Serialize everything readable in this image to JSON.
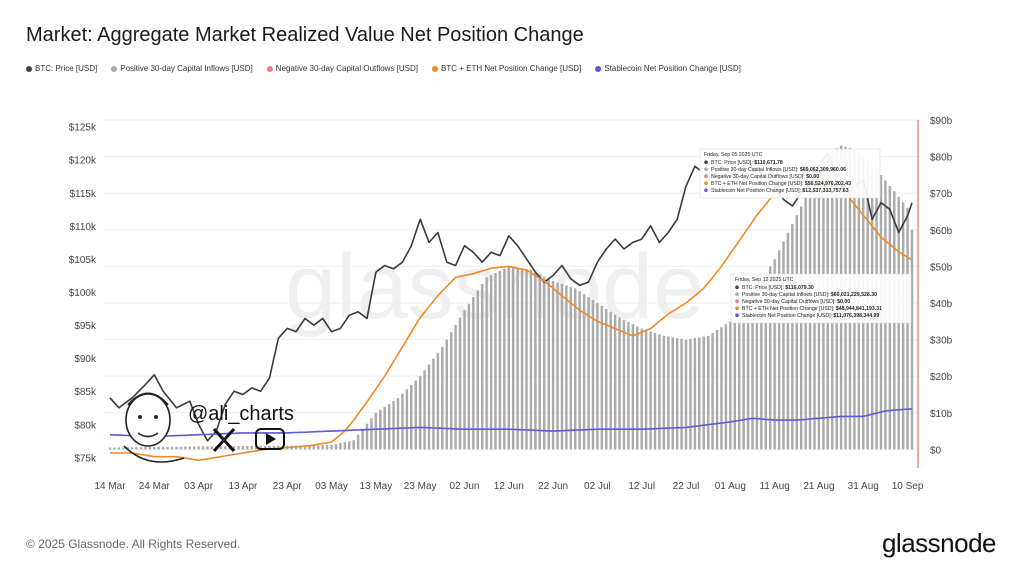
{
  "title": "Market: Aggregate Market Realized Value Net Position Change",
  "legend": [
    {
      "label": "BTC: Price [USD]",
      "color": "#444444"
    },
    {
      "label": "Positive 30-day Capital Inflows [USD]",
      "color": "#aaaaaa"
    },
    {
      "label": "Negative 30-day Capital Outflows [USD]",
      "color": "#f07a7a"
    },
    {
      "label": "BTC + ETH Net Position Change [USD]",
      "color": "#f08a24"
    },
    {
      "label": "Stablecoin Net Position Change [USD]",
      "color": "#5b5bd6"
    }
  ],
  "watermark": "glassnode",
  "handle": "@ali_charts",
  "footer": {
    "copyright": "© 2025 Glassnode. All Rights Reserved.",
    "logo": "glassnode"
  },
  "chart_data": {
    "type": "bar+line",
    "x_ticks": [
      "14 Mar",
      "24 Mar",
      "03 Apr",
      "13 Apr",
      "23 Apr",
      "03 May",
      "13 May",
      "23 May",
      "02 Jun",
      "12 Jun",
      "22 Jun",
      "02 Jul",
      "12 Jul",
      "22 Jul",
      "01 Aug",
      "11 Aug",
      "21 Aug",
      "31 Aug",
      "10 Sep"
    ],
    "y_left_ticks": [
      "$125k",
      "$120k",
      "$115k",
      "$110k",
      "$105k",
      "$100k",
      "$95k",
      "$90k",
      "$85k",
      "$80k",
      "$75k"
    ],
    "y_left_range": [
      74000,
      126000
    ],
    "y_right_ticks": [
      "$90b",
      "$80b",
      "$70b",
      "$60b",
      "$50b",
      "$40b",
      "$30b",
      "$20b",
      "$10b",
      "$0"
    ],
    "y_right_range": [
      -4,
      90
    ],
    "n_days": 182,
    "series": [
      {
        "name": "Positive 30-day Capital Inflows [USD] (billions)",
        "type": "bar",
        "color": "#aaaaaa",
        "anchors": [
          [
            0,
            0.5
          ],
          [
            20,
            0.8
          ],
          [
            40,
            1.0
          ],
          [
            50,
            1.2
          ],
          [
            55,
            2.5
          ],
          [
            60,
            10
          ],
          [
            65,
            14
          ],
          [
            70,
            20
          ],
          [
            75,
            28
          ],
          [
            80,
            38
          ],
          [
            85,
            47
          ],
          [
            90,
            50
          ],
          [
            95,
            49
          ],
          [
            100,
            46
          ],
          [
            105,
            44
          ],
          [
            110,
            40
          ],
          [
            115,
            36
          ],
          [
            120,
            33
          ],
          [
            125,
            31
          ],
          [
            130,
            30
          ],
          [
            135,
            31
          ],
          [
            140,
            35
          ],
          [
            145,
            42
          ],
          [
            150,
            52
          ],
          [
            155,
            64
          ],
          [
            160,
            76
          ],
          [
            162,
            81
          ],
          [
            165,
            83
          ],
          [
            168,
            82
          ],
          [
            172,
            78
          ],
          [
            176,
            72
          ],
          [
            180,
            66
          ],
          [
            181,
            60
          ]
        ]
      },
      {
        "name": "BTC: Price [USD]",
        "type": "line",
        "color": "#3a3a3a",
        "anchors": [
          [
            0,
            84000
          ],
          [
            2,
            82500
          ],
          [
            5,
            84000
          ],
          [
            8,
            86000
          ],
          [
            10,
            87500
          ],
          [
            12,
            85000
          ],
          [
            15,
            82500
          ],
          [
            18,
            83500
          ],
          [
            20,
            80000
          ],
          [
            22,
            77500
          ],
          [
            24,
            79000
          ],
          [
            26,
            83000
          ],
          [
            28,
            85000
          ],
          [
            30,
            84500
          ],
          [
            32,
            85500
          ],
          [
            34,
            85000
          ],
          [
            36,
            87000
          ],
          [
            38,
            93000
          ],
          [
            40,
            94500
          ],
          [
            42,
            94000
          ],
          [
            44,
            96000
          ],
          [
            46,
            95000
          ],
          [
            48,
            96000
          ],
          [
            50,
            94000
          ],
          [
            52,
            94500
          ],
          [
            54,
            96500
          ],
          [
            56,
            97000
          ],
          [
            58,
            96000
          ],
          [
            60,
            103000
          ],
          [
            62,
            104000
          ],
          [
            64,
            103500
          ],
          [
            66,
            104500
          ],
          [
            68,
            107000
          ],
          [
            70,
            111000
          ],
          [
            72,
            107500
          ],
          [
            74,
            109000
          ],
          [
            76,
            104500
          ],
          [
            78,
            104000
          ],
          [
            80,
            107000
          ],
          [
            82,
            106000
          ],
          [
            84,
            104500
          ],
          [
            86,
            106000
          ],
          [
            88,
            105500
          ],
          [
            90,
            108500
          ],
          [
            92,
            107000
          ],
          [
            94,
            105000
          ],
          [
            96,
            103000
          ],
          [
            98,
            101500
          ],
          [
            100,
            102500
          ],
          [
            102,
            104000
          ],
          [
            104,
            102000
          ],
          [
            106,
            101000
          ],
          [
            108,
            101500
          ],
          [
            110,
            104500
          ],
          [
            112,
            106500
          ],
          [
            114,
            108000
          ],
          [
            116,
            106500
          ],
          [
            118,
            107500
          ],
          [
            120,
            108000
          ],
          [
            122,
            110000
          ],
          [
            124,
            107500
          ],
          [
            126,
            109000
          ],
          [
            128,
            111000
          ],
          [
            130,
            116000
          ],
          [
            132,
            119000
          ],
          [
            134,
            118000
          ],
          [
            136,
            117500
          ],
          [
            138,
            119000
          ],
          [
            140,
            118000
          ],
          [
            142,
            117000
          ],
          [
            144,
            119500
          ],
          [
            146,
            118500
          ],
          [
            148,
            117500
          ],
          [
            150,
            116000
          ],
          [
            152,
            114000
          ],
          [
            154,
            113000
          ],
          [
            156,
            115000
          ],
          [
            158,
            116500
          ],
          [
            160,
            119000
          ],
          [
            162,
            121000
          ],
          [
            164,
            117000
          ],
          [
            166,
            114500
          ],
          [
            168,
            116000
          ],
          [
            170,
            117000
          ],
          [
            172,
            111000
          ],
          [
            174,
            113500
          ],
          [
            176,
            112500
          ],
          [
            178,
            109000
          ],
          [
            180,
            111500
          ],
          [
            182,
            115500
          ]
        ]
      },
      {
        "name": "BTC + ETH Net Position Change [USD] (billions)",
        "type": "line",
        "color": "#f08a24",
        "anchors": [
          [
            0,
            -1
          ],
          [
            5,
            -1
          ],
          [
            10,
            -2
          ],
          [
            15,
            -2
          ],
          [
            20,
            -3
          ],
          [
            25,
            -2
          ],
          [
            30,
            -1
          ],
          [
            35,
            0
          ],
          [
            40,
            0.5
          ],
          [
            45,
            1
          ],
          [
            50,
            2
          ],
          [
            53,
            5
          ],
          [
            55,
            8
          ],
          [
            58,
            13
          ],
          [
            62,
            20
          ],
          [
            66,
            28
          ],
          [
            70,
            36
          ],
          [
            74,
            42
          ],
          [
            78,
            47
          ],
          [
            82,
            48
          ],
          [
            86,
            49.5
          ],
          [
            90,
            50
          ],
          [
            94,
            49
          ],
          [
            98,
            46
          ],
          [
            102,
            42
          ],
          [
            106,
            38
          ],
          [
            110,
            35
          ],
          [
            114,
            33
          ],
          [
            118,
            31
          ],
          [
            122,
            33
          ],
          [
            126,
            37
          ],
          [
            130,
            40
          ],
          [
            134,
            44
          ],
          [
            138,
            50
          ],
          [
            142,
            57
          ],
          [
            146,
            64
          ],
          [
            150,
            70
          ],
          [
            154,
            72
          ],
          [
            158,
            74
          ],
          [
            162,
            73
          ],
          [
            166,
            70
          ],
          [
            170,
            64
          ],
          [
            174,
            58
          ],
          [
            178,
            54
          ],
          [
            182,
            51
          ]
        ]
      },
      {
        "name": "Stablecoin Net Position Change [USD] (billions)",
        "type": "line",
        "color": "#5b5bd6",
        "anchors": [
          [
            0,
            4
          ],
          [
            10,
            3.5
          ],
          [
            20,
            4
          ],
          [
            30,
            4.5
          ],
          [
            40,
            4.5
          ],
          [
            50,
            5
          ],
          [
            60,
            5.5
          ],
          [
            70,
            6
          ],
          [
            80,
            5.5
          ],
          [
            90,
            5.5
          ],
          [
            100,
            5
          ],
          [
            110,
            5.5
          ],
          [
            120,
            5.5
          ],
          [
            130,
            6
          ],
          [
            140,
            7.5
          ],
          [
            145,
            8.5
          ],
          [
            150,
            8
          ],
          [
            155,
            8
          ],
          [
            160,
            8.5
          ],
          [
            165,
            9
          ],
          [
            170,
            9
          ],
          [
            175,
            10.5
          ],
          [
            180,
            11
          ],
          [
            182,
            11
          ]
        ]
      }
    ],
    "tooltips": [
      {
        "date": "Friday, Sep 05 2025 UTC",
        "rows": [
          {
            "label": "BTC: Price [USD]:",
            "value": "$110,671.78",
            "color": "#444444"
          },
          {
            "label": "Positive 30-day Capital Inflows [USD]:",
            "value": "$69,062,309,960.06",
            "color": "#aaaaaa"
          },
          {
            "label": "Negative 30-day Capital Outflows [USD]:",
            "value": "$0.00",
            "color": "#f07a7a"
          },
          {
            "label": "BTC + ETH Net Position Change [USD]:",
            "value": "$56,524,976,202.43",
            "color": "#f08a24"
          },
          {
            "label": "Stablecoin Net Position Change [USD]:",
            "value": "$12,537,333,757.63",
            "color": "#5b5bd6"
          }
        ]
      },
      {
        "date": "Friday, Sep 12 2025 UTC",
        "rows": [
          {
            "label": "BTC: Price [USD]:",
            "value": "$116,079.30",
            "color": "#444444"
          },
          {
            "label": "Positive 30-day Capital Inflows [USD]:",
            "value": "$60,021,229,528.30",
            "color": "#aaaaaa"
          },
          {
            "label": "Negative 30-day Capital Outflows [USD]:",
            "value": "$0.00",
            "color": "#f07a7a"
          },
          {
            "label": "BTC + ETH Net Position Change [USD]:",
            "value": "$48,944,841,193.31",
            "color": "#f08a24"
          },
          {
            "label": "Stablecoin Net Position Change [USD]:",
            "value": "$11,076,398,344.99",
            "color": "#5b5bd6"
          }
        ]
      }
    ]
  }
}
